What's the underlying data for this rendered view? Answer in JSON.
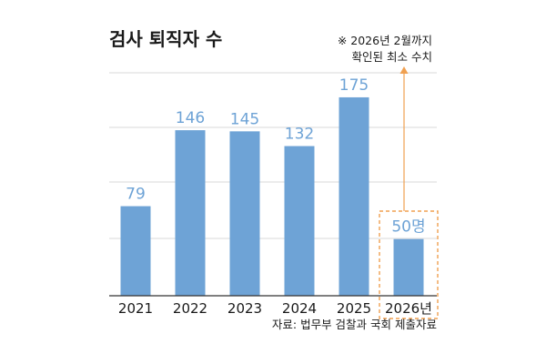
{
  "chart_data": {
    "type": "bar",
    "title": "검사 퇴직자 수",
    "categories": [
      "2021",
      "2022",
      "2023",
      "2024",
      "2025",
      "2026년"
    ],
    "values": [
      79,
      146,
      145,
      132,
      175,
      50
    ],
    "value_labels": [
      "79",
      "146",
      "145",
      "132",
      "175",
      "50명"
    ],
    "xlabel": "",
    "ylabel": "",
    "ylim": [
      0,
      200
    ],
    "grid": true,
    "highlight_index": 5,
    "annotation": [
      "※ 2026년 2월까지",
      "확인된 최소 수치"
    ],
    "source": "자료: 법무부 검찰과 국회 제출자료",
    "colors": {
      "bar": "#6ea3d6",
      "value_label": "#6ea3d6",
      "highlight": "#f0a050",
      "grid": "#d9d9d9",
      "axis": "#333333",
      "text": "#1a1a1a"
    }
  }
}
